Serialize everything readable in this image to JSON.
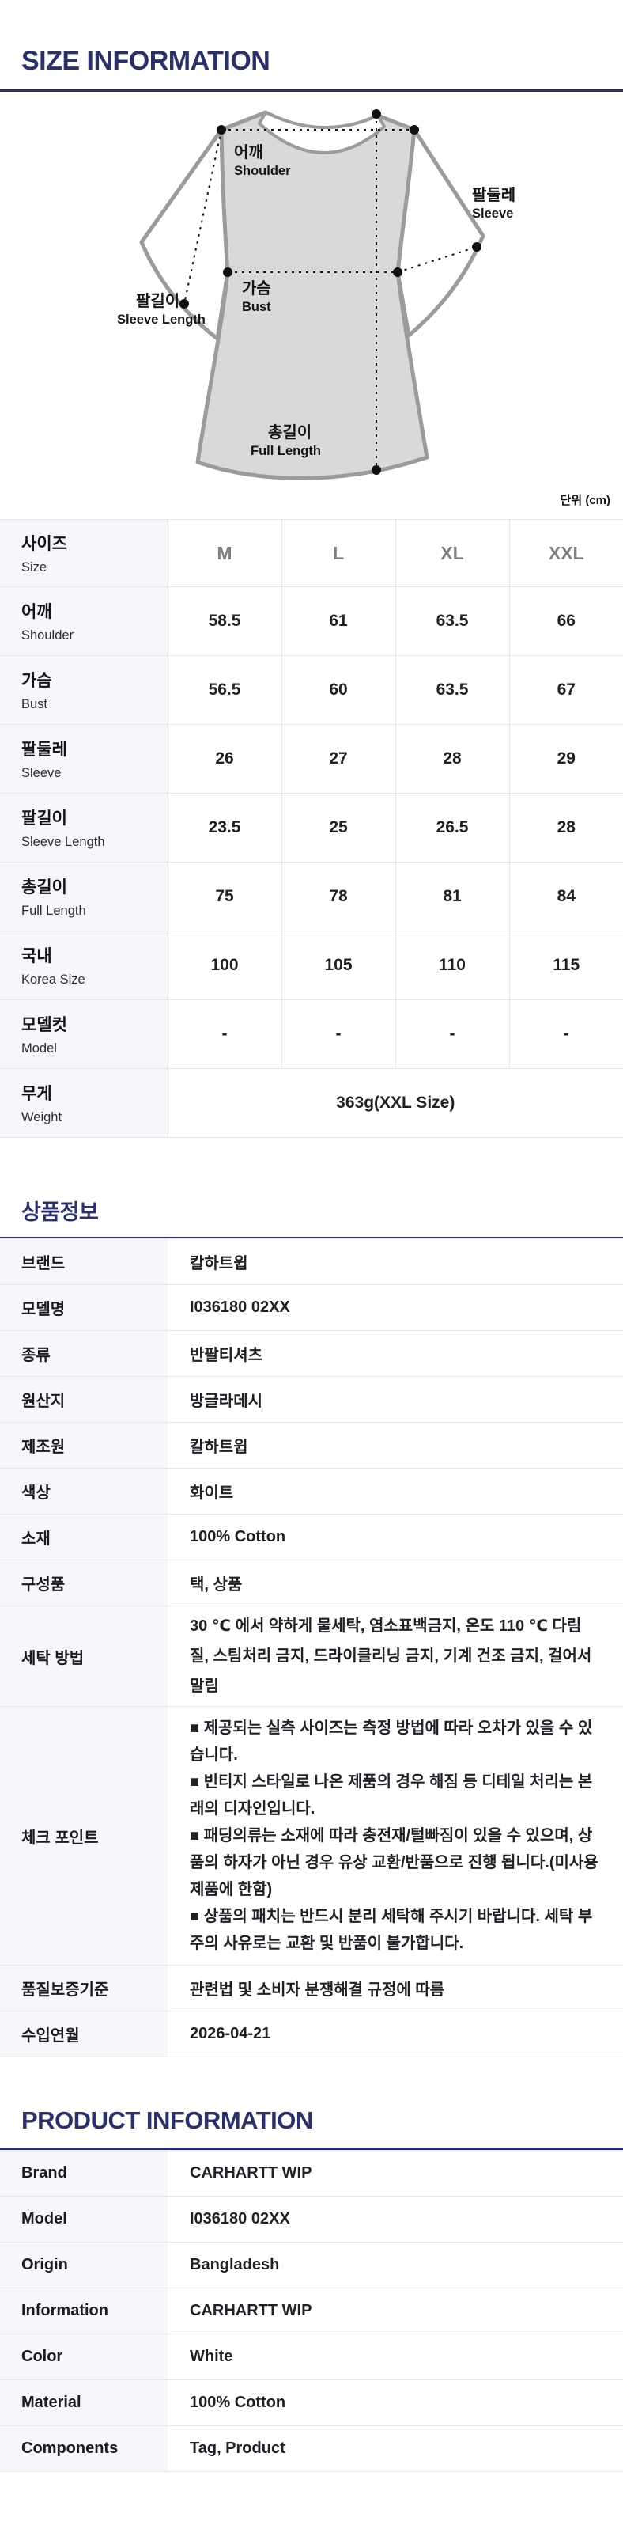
{
  "page": {
    "unit_label": "단위 (cm)"
  },
  "colors": {
    "accent_navy": "#2b3166",
    "label_column_bg": "#f6f7fa",
    "table_border": "#e5e6ea",
    "shirt_fill": "#d9d9d9",
    "shirt_outline": "#9b9b9b",
    "size_header_gray": "#7f8084"
  },
  "size_section": {
    "title": "SIZE INFORMATION",
    "diagram": {
      "labels": [
        {
          "ko": "어깨",
          "en": "Shoulder"
        },
        {
          "ko": "팔둘레",
          "en": "Sleeve"
        },
        {
          "ko": "가슴",
          "en": "Bust"
        },
        {
          "ko": "팔길이",
          "en": "Sleeve Length"
        },
        {
          "ko": "총길이",
          "en": "Full Length"
        }
      ]
    },
    "table": {
      "header": {
        "ko": "사이즈",
        "en": "Size",
        "sizes": [
          "M",
          "L",
          "XL",
          "XXL"
        ]
      },
      "rows": [
        {
          "ko": "어깨",
          "en": "Shoulder",
          "values": [
            "58.5",
            "61",
            "63.5",
            "66"
          ]
        },
        {
          "ko": "가슴",
          "en": "Bust",
          "values": [
            "56.5",
            "60",
            "63.5",
            "67"
          ]
        },
        {
          "ko": "팔둘레",
          "en": "Sleeve",
          "values": [
            "26",
            "27",
            "28",
            "29"
          ]
        },
        {
          "ko": "팔길이",
          "en": "Sleeve Length",
          "values": [
            "23.5",
            "25",
            "26.5",
            "28"
          ]
        },
        {
          "ko": "총길이",
          "en": "Full Length",
          "values": [
            "75",
            "78",
            "81",
            "84"
          ]
        },
        {
          "ko": "국내",
          "en": "Korea Size",
          "values": [
            "100",
            "105",
            "110",
            "115"
          ]
        },
        {
          "ko": "모델컷",
          "en": "Model",
          "values": [
            "-",
            "-",
            "-",
            "-"
          ]
        }
      ],
      "weight_row": {
        "ko": "무게",
        "en": "Weight",
        "value": "363g(XXL Size)"
      }
    }
  },
  "product_info_kr": {
    "title": "상품정보",
    "rows": [
      {
        "label": "브랜드",
        "value": "칼하트윕"
      },
      {
        "label": "모델명",
        "value": "I036180 02XX"
      },
      {
        "label": "종류",
        "value": "반팔티셔츠"
      },
      {
        "label": "원산지",
        "value": "방글라데시"
      },
      {
        "label": "제조원",
        "value": "칼하트윕"
      },
      {
        "label": "색상",
        "value": "화이트"
      },
      {
        "label": "소재",
        "value": "100% Cotton"
      },
      {
        "label": "구성품",
        "value": "택, 상품"
      },
      {
        "label": "세탁 방법",
        "value": "30 ℃ 에서 약하게 물세탁, 염소표백금지, 온도 110 ℃ 다림질, 스팀처리 금지, 드라이클리닝 금지, 기계 건조 금지, 걸어서 말림"
      },
      {
        "label": "체크 포인트",
        "bullets": [
          "■ 제공되는 실측 사이즈는 측정 방법에 따라 오차가 있을 수 있습니다.",
          "■ 빈티지 스타일로 나온 제품의 경우 해짐 등 디테일 처리는 본래의 디자인입니다.",
          "■ 패딩의류는 소재에 따라 충전재/털빠짐이 있을 수 있으며, 상품의 하자가 아닌 경우 유상 교환/반품으로 진행 됩니다.(미사용 제품에 한함)",
          "■ 상품의 패치는 반드시 분리 세탁해 주시기 바랍니다. 세탁 부주의 사유로는 교환 및 반품이 불가합니다."
        ]
      },
      {
        "label": "품질보증기준",
        "value": "관련법 및 소비자 분쟁해결 규정에 따름"
      },
      {
        "label": "수입연월",
        "value": "2026-04-21"
      }
    ]
  },
  "product_info_en": {
    "title": "PRODUCT INFORMATION",
    "rows": [
      {
        "label": "Brand",
        "value": "CARHARTT WIP"
      },
      {
        "label": "Model",
        "value": "I036180 02XX"
      },
      {
        "label": "Origin",
        "value": "Bangladesh"
      },
      {
        "label": "Information",
        "value": "CARHARTT WIP"
      },
      {
        "label": "Color",
        "value": "White"
      },
      {
        "label": "Material",
        "value": "100% Cotton"
      },
      {
        "label": "Components",
        "value": "Tag, Product"
      }
    ]
  }
}
